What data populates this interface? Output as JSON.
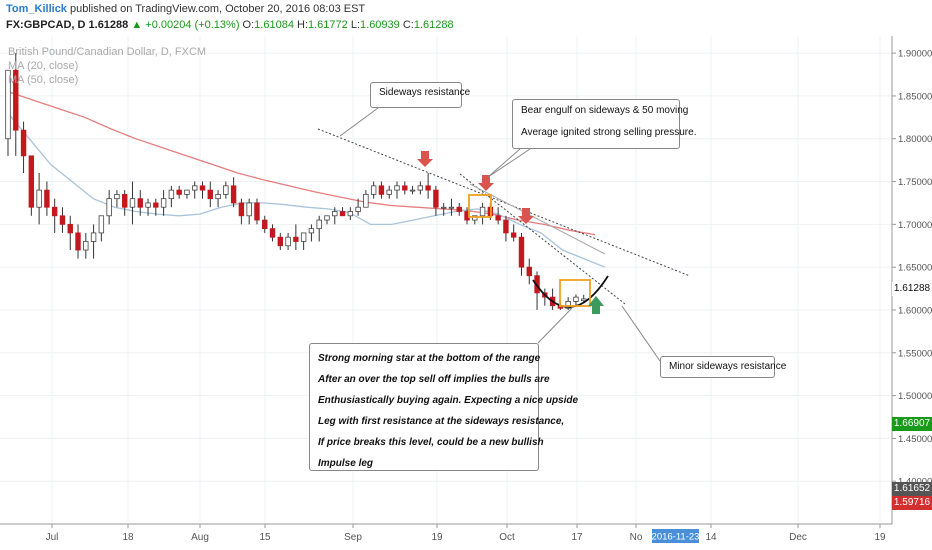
{
  "header": {
    "author": "Tom_Killick",
    "published_text": "published on TradingView.com, October 20, 2016 08:03 EST",
    "symbol": "FX:GBPCAD, D",
    "last": "1.61288",
    "change_arrow": "▲",
    "change": "+0.00204 (+0.13%)",
    "open_label": "O:",
    "open": "1.61084",
    "high_label": "H:",
    "high": "1.61772",
    "low_label": "L:",
    "low": "1.60939",
    "close_label": "C:",
    "close": "1.61288"
  },
  "legend": {
    "instrument": "British Pound/Canadian Dollar, D, FXCM",
    "ma20": "MA (20, close)",
    "ma50": "MA (50, close)"
  },
  "annotations": {
    "sideways": "Sideways resistance",
    "bear": [
      "Bear engulf on sideways & 50 moving",
      "Average ignited strong selling pressure."
    ],
    "morning": [
      "Strong morning star at the bottom of the range",
      "After an over the top sell off implies the bulls are",
      "Enthusiastically buying again. Expecting a nice upside",
      "Leg with first resistance at the sideways resistance,",
      "If price breaks this level, could be a new bullish",
      "Impulse leg"
    ],
    "minor": "Minor sideways resistance"
  },
  "price_tags": {
    "last": "1.61288",
    "green": "1.66907",
    "dark": "1.61652",
    "red": "1.59716"
  },
  "colors": {
    "up_body": "#ffffff",
    "down_body": "#c2181f",
    "ma20": "#a8c4dc",
    "ma50": "#e87d7d",
    "green_tag": "#1a9a1a",
    "dark_tag": "#555555",
    "red_tag": "#d32f2f",
    "date_tag": "#4a90d9",
    "arrow_down": "#d9534f",
    "arrow_up": "#3c9a5f",
    "box": "#f0a020"
  },
  "date_tag": "2016-11-23",
  "chart_data": {
    "type": "candlestick",
    "symbol": "FX:GBPCAD",
    "timeframe": "D",
    "ylim": [
      1.35,
      1.92
    ],
    "y_ticks": [
      "1.90000",
      "1.85000",
      "1.80000",
      "1.75000",
      "1.70000",
      "1.65000",
      "1.60000",
      "1.55000",
      "1.50000",
      "1.45000",
      "1.40000"
    ],
    "x_ticks": [
      "Jul",
      "18",
      "Aug",
      "15",
      "Sep",
      "19",
      "Oct",
      "17",
      "No",
      "14",
      "Dec",
      "19"
    ],
    "candles": [
      [
        1.8,
        1.88,
        1.78,
        1.88
      ],
      [
        1.88,
        1.9,
        1.78,
        1.81
      ],
      [
        1.81,
        1.82,
        1.76,
        1.78
      ],
      [
        1.78,
        1.78,
        1.71,
        1.72
      ],
      [
        1.72,
        1.76,
        1.7,
        1.74
      ],
      [
        1.74,
        1.75,
        1.71,
        1.72
      ],
      [
        1.72,
        1.73,
        1.69,
        1.71
      ],
      [
        1.71,
        1.72,
        1.69,
        1.7
      ],
      [
        1.7,
        1.71,
        1.67,
        1.69
      ],
      [
        1.69,
        1.7,
        1.66,
        1.67
      ],
      [
        1.67,
        1.69,
        1.66,
        1.68
      ],
      [
        1.68,
        1.7,
        1.66,
        1.69
      ],
      [
        1.69,
        1.71,
        1.68,
        1.71
      ],
      [
        1.71,
        1.74,
        1.7,
        1.73
      ],
      [
        1.73,
        1.74,
        1.72,
        1.735
      ],
      [
        1.735,
        1.74,
        1.71,
        1.72
      ],
      [
        1.72,
        1.75,
        1.7,
        1.73
      ],
      [
        1.73,
        1.74,
        1.71,
        1.72
      ],
      [
        1.72,
        1.73,
        1.71,
        1.725
      ],
      [
        1.725,
        1.73,
        1.71,
        1.72
      ],
      [
        1.72,
        1.74,
        1.71,
        1.73
      ],
      [
        1.73,
        1.745,
        1.72,
        1.74
      ],
      [
        1.74,
        1.745,
        1.73,
        1.735
      ],
      [
        1.735,
        1.74,
        1.73,
        1.74
      ],
      [
        1.74,
        1.75,
        1.73,
        1.745
      ],
      [
        1.745,
        1.75,
        1.73,
        1.74
      ],
      [
        1.74,
        1.75,
        1.72,
        1.73
      ],
      [
        1.73,
        1.74,
        1.72,
        1.735
      ],
      [
        1.735,
        1.75,
        1.73,
        1.745
      ],
      [
        1.745,
        1.755,
        1.72,
        1.725
      ],
      [
        1.725,
        1.73,
        1.7,
        1.71
      ],
      [
        1.71,
        1.73,
        1.7,
        1.725
      ],
      [
        1.725,
        1.73,
        1.7,
        1.705
      ],
      [
        1.705,
        1.71,
        1.69,
        1.695
      ],
      [
        1.695,
        1.7,
        1.68,
        1.685
      ],
      [
        1.685,
        1.69,
        1.67,
        1.675
      ],
      [
        1.675,
        1.69,
        1.67,
        1.685
      ],
      [
        1.685,
        1.7,
        1.67,
        1.68
      ],
      [
        1.68,
        1.69,
        1.67,
        1.69
      ],
      [
        1.69,
        1.7,
        1.68,
        1.695
      ],
      [
        1.695,
        1.71,
        1.68,
        1.705
      ],
      [
        1.705,
        1.71,
        1.7,
        1.71
      ],
      [
        1.71,
        1.72,
        1.7,
        1.715
      ],
      [
        1.715,
        1.72,
        1.71,
        1.71
      ],
      [
        1.71,
        1.72,
        1.705,
        1.715
      ],
      [
        1.715,
        1.73,
        1.71,
        1.72
      ],
      [
        1.72,
        1.74,
        1.72,
        1.735
      ],
      [
        1.735,
        1.75,
        1.73,
        1.745
      ],
      [
        1.745,
        1.75,
        1.73,
        1.735
      ],
      [
        1.735,
        1.745,
        1.73,
        1.74
      ],
      [
        1.74,
        1.75,
        1.73,
        1.745
      ],
      [
        1.745,
        1.75,
        1.735,
        1.74
      ],
      [
        1.74,
        1.745,
        1.735,
        1.74
      ],
      [
        1.74,
        1.75,
        1.735,
        1.745
      ],
      [
        1.745,
        1.76,
        1.73,
        1.74
      ],
      [
        1.74,
        1.745,
        1.71,
        1.72
      ],
      [
        1.72,
        1.725,
        1.71,
        1.72
      ],
      [
        1.72,
        1.73,
        1.71,
        1.72
      ],
      [
        1.72,
        1.725,
        1.71,
        1.715
      ],
      [
        1.715,
        1.72,
        1.7,
        1.705
      ],
      [
        1.705,
        1.71,
        1.7,
        1.71
      ],
      [
        1.71,
        1.725,
        1.7,
        1.72
      ],
      [
        1.72,
        1.725,
        1.705,
        1.71
      ],
      [
        1.71,
        1.72,
        1.7,
        1.705
      ],
      [
        1.705,
        1.71,
        1.68,
        1.69
      ],
      [
        1.69,
        1.7,
        1.68,
        1.685
      ],
      [
        1.685,
        1.69,
        1.64,
        1.65
      ],
      [
        1.65,
        1.66,
        1.63,
        1.64
      ],
      [
        1.64,
        1.645,
        1.6,
        1.62
      ],
      [
        1.62,
        1.625,
        1.605,
        1.615
      ],
      [
        1.615,
        1.625,
        1.6,
        1.605
      ],
      [
        1.605,
        1.61,
        1.6,
        1.602
      ],
      [
        1.602,
        1.615,
        1.6,
        1.61
      ],
      [
        1.61,
        1.618,
        1.605,
        1.615
      ],
      [
        1.61084,
        1.61772,
        1.60939,
        1.61288
      ]
    ],
    "ma20_approx": [
      1.83,
      1.8,
      1.77,
      1.75,
      1.73,
      1.72,
      1.715,
      1.712,
      1.71,
      1.712,
      1.72,
      1.725,
      1.725,
      1.723,
      1.72,
      1.718,
      1.714,
      1.7,
      1.7,
      1.705,
      1.71,
      1.715,
      1.718,
      1.712,
      1.7,
      1.69,
      1.67,
      1.66,
      1.65
    ],
    "ma50_approx": [
      1.855,
      1.845,
      1.835,
      1.825,
      1.812,
      1.8,
      1.79,
      1.78,
      1.77,
      1.76,
      1.752,
      1.745,
      1.738,
      1.732,
      1.726,
      1.722,
      1.72,
      1.718,
      1.716,
      1.712,
      1.705,
      1.7,
      1.693,
      1.688
    ]
  }
}
